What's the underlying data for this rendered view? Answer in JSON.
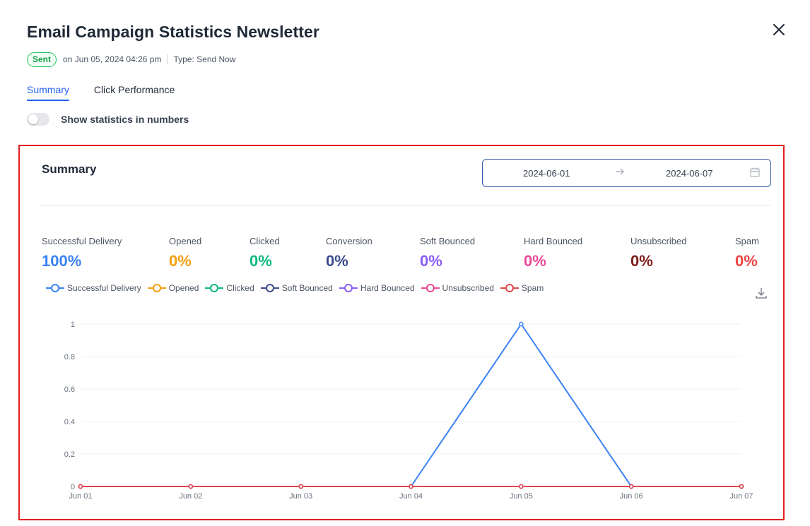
{
  "header": {
    "title": "Email Campaign Statistics Newsletter",
    "status": "Sent",
    "sent_on": "on Jun 05, 2024 04:26 pm",
    "type": "Type: Send Now"
  },
  "tabs": [
    {
      "label": "Summary",
      "active": true
    },
    {
      "label": "Click Performance",
      "active": false
    }
  ],
  "toggle": {
    "label": "Show statistics in numbers",
    "on": false
  },
  "summary": {
    "title": "Summary",
    "date_start": "2024-06-01",
    "date_end": "2024-06-07",
    "stats": [
      {
        "label": "Successful Delivery",
        "value": "100%",
        "color": "#3b82f6"
      },
      {
        "label": "Opened",
        "value": "0%",
        "color": "#f59e0b"
      },
      {
        "label": "Clicked",
        "value": "0%",
        "color": "#10b981"
      },
      {
        "label": "Conversion",
        "value": "0%",
        "color": "#3b4a8c"
      },
      {
        "label": "Soft Bounced",
        "value": "0%",
        "color": "#8b5cf6"
      },
      {
        "label": "Hard Bounced",
        "value": "0%",
        "color": "#ec4899"
      },
      {
        "label": "Unsubscribed",
        "value": "0%",
        "color": "#7f1d1d"
      },
      {
        "label": "Spam",
        "value": "0%",
        "color": "#ef4444"
      }
    ]
  },
  "chart_data": {
    "type": "line",
    "title": "",
    "xlabel": "",
    "ylabel": "",
    "categories": [
      "Jun 01",
      "Jun 02",
      "Jun 03",
      "Jun 04",
      "Jun 05",
      "Jun 06",
      "Jun 07"
    ],
    "y_ticks": [
      "0",
      "0.2",
      "0.4",
      "0.6",
      "0.8",
      "1"
    ],
    "ylim": [
      0,
      1
    ],
    "grid": true,
    "legend_position": "top-left",
    "series": [
      {
        "name": "Successful Delivery",
        "color": "#3b82f6",
        "values": [
          0,
          0,
          0,
          0,
          1,
          0,
          0
        ]
      },
      {
        "name": "Opened",
        "color": "#f59e0b",
        "values": [
          0,
          0,
          0,
          0,
          0,
          0,
          0
        ]
      },
      {
        "name": "Clicked",
        "color": "#10b981",
        "values": [
          0,
          0,
          0,
          0,
          0,
          0,
          0
        ]
      },
      {
        "name": "Soft Bounced",
        "color": "#3b4a8c",
        "values": [
          0,
          0,
          0,
          0,
          0,
          0,
          0
        ]
      },
      {
        "name": "Hard Bounced",
        "color": "#8b5cf6",
        "values": [
          0,
          0,
          0,
          0,
          0,
          0,
          0
        ]
      },
      {
        "name": "Unsubscribed",
        "color": "#ec4899",
        "values": [
          0,
          0,
          0,
          0,
          0,
          0,
          0
        ]
      },
      {
        "name": "Spam",
        "color": "#e0474c",
        "values": [
          0,
          0,
          0,
          0,
          0,
          0,
          0
        ]
      }
    ]
  },
  "icons": {
    "close": "close-icon",
    "arrow": "arrow-right-icon",
    "calendar": "calendar-icon",
    "download": "download-icon"
  }
}
